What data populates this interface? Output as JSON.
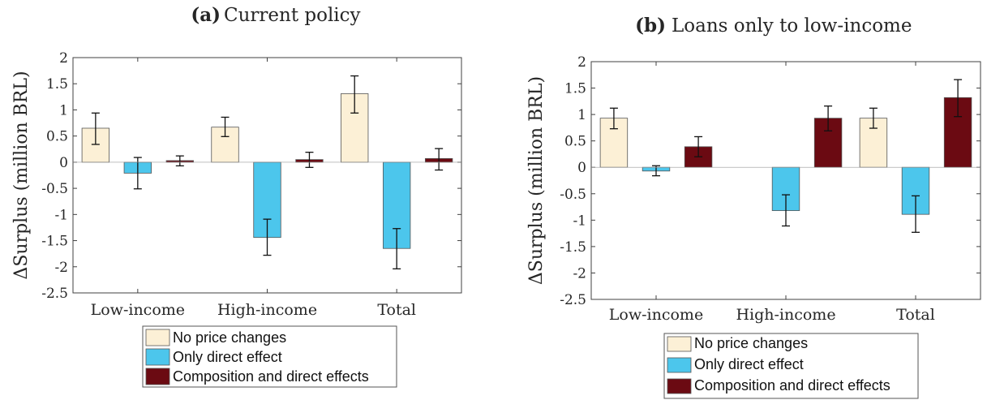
{
  "colors": {
    "no_price_changes": "#fcf0d6",
    "only_direct_effect": "#4cc6ec",
    "composition_and_direct": "#6b0a12",
    "axis": "#404040",
    "grid": "#ffffff",
    "text": "#262626"
  },
  "panels": [
    {
      "panel_label": "(a)",
      "panel_title": "Current policy"
    },
    {
      "panel_label": "(b)",
      "panel_title": "Loans only to low-income"
    }
  ],
  "chart_data": [
    {
      "type": "bar",
      "title": "(a) Current policy",
      "xlabel": "",
      "ylabel": "ΔSurplus (million BRL)",
      "ylim": [
        -2.5,
        2
      ],
      "yticks": [
        "2",
        "1.5",
        "1",
        "0.5",
        "0",
        "-0.5",
        "-1",
        "-1.5",
        "-2",
        "-2.5"
      ],
      "categories": [
        "Low-income",
        "High-income",
        "Total"
      ],
      "legend_placement": "below",
      "series": [
        {
          "name": "No price changes",
          "values": [
            0.65,
            0.67,
            1.31
          ],
          "err_low": [
            0.34,
            0.49,
            0.94
          ],
          "err_high": [
            0.94,
            0.86,
            1.65
          ]
        },
        {
          "name": "Only direct effect",
          "values": [
            -0.21,
            -1.44,
            -1.65
          ],
          "err_low": [
            -0.51,
            -1.78,
            -2.04
          ],
          "err_high": [
            0.09,
            -1.09,
            -1.27
          ]
        },
        {
          "name": "Composition and direct effects",
          "values": [
            0.03,
            0.05,
            0.07
          ],
          "err_low": [
            -0.07,
            -0.1,
            -0.15
          ],
          "err_high": [
            0.12,
            0.19,
            0.26
          ]
        }
      ]
    },
    {
      "type": "bar",
      "title": "(b) Loans only to low-income",
      "xlabel": "",
      "ylabel": "ΔSurplus (million BRL)",
      "ylim": [
        -2.5,
        2
      ],
      "yticks": [
        "2",
        "1.5",
        "1",
        "0.5",
        "0",
        "-0.5",
        "-1",
        "-1.5",
        "-2",
        "-2.5"
      ],
      "categories": [
        "Low-income",
        "High-income",
        "Total"
      ],
      "legend_placement": "below",
      "series": [
        {
          "name": "No price changes",
          "values": [
            0.93,
            0,
            0.93
          ],
          "err_low": [
            0.73,
            null,
            0.74
          ],
          "err_high": [
            1.12,
            null,
            1.12
          ]
        },
        {
          "name": "Only direct effect",
          "values": [
            -0.07,
            -0.82,
            -0.89
          ],
          "err_low": [
            -0.16,
            -1.11,
            -1.23
          ],
          "err_high": [
            0.03,
            -0.52,
            -0.54
          ]
        },
        {
          "name": "Composition and direct effects",
          "values": [
            0.39,
            0.93,
            1.32
          ],
          "err_low": [
            0.2,
            0.69,
            0.96
          ],
          "err_high": [
            0.58,
            1.16,
            1.66
          ]
        }
      ]
    }
  ]
}
